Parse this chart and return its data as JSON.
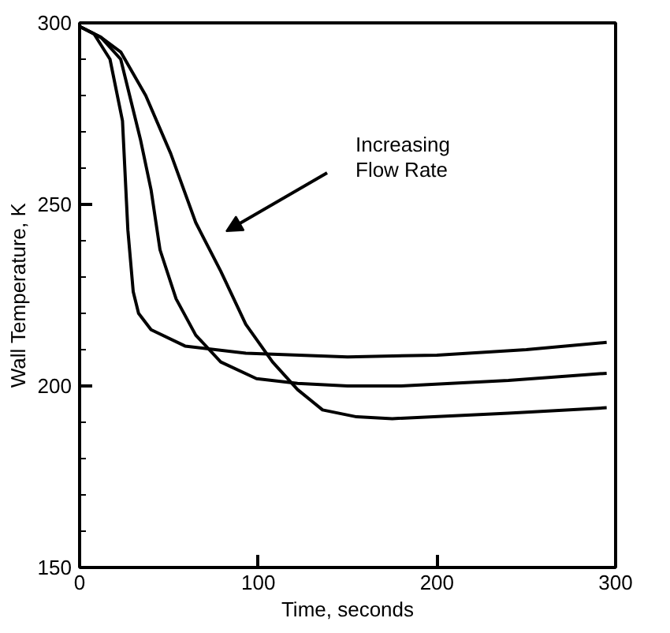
{
  "chart_data": {
    "type": "line",
    "xlabel": "Time, seconds",
    "ylabel": "Wall Temperature, K",
    "xlim": [
      0,
      300
    ],
    "ylim": [
      150,
      300
    ],
    "xticks": [
      0,
      100,
      200,
      300
    ],
    "yticks": [
      150,
      200,
      250,
      300
    ],
    "marker": "none",
    "line_style": "solid",
    "series": [
      {
        "color": "#000000",
        "x": [
          0,
          8,
          17,
          24,
          27,
          30,
          33,
          40,
          59,
          93,
          150,
          200,
          250,
          295
        ],
        "values": [
          299,
          297,
          290,
          273,
          243,
          226,
          220,
          215.5,
          211,
          209,
          208,
          208.5,
          210,
          212
        ]
      },
      {
        "color": "#000000",
        "x": [
          0,
          12,
          23,
          34,
          40,
          45,
          54,
          65,
          79,
          99,
          122,
          150,
          180,
          240,
          295
        ],
        "values": [
          299,
          296,
          290,
          268,
          254,
          237.5,
          224,
          214,
          206.6,
          202,
          200.7,
          200,
          200,
          201.5,
          203.5
        ]
      },
      {
        "color": "#000000",
        "x": [
          0,
          12,
          23,
          37,
          51,
          65,
          79,
          93,
          108,
          122,
          136,
          155,
          175,
          240,
          295
        ],
        "values": [
          299,
          296,
          292,
          280,
          264,
          245,
          231.6,
          217,
          206.6,
          199,
          193.4,
          191.5,
          191,
          192.5,
          194
        ]
      }
    ],
    "annotations": [
      "Increasing\nFlow Rate"
    ]
  }
}
